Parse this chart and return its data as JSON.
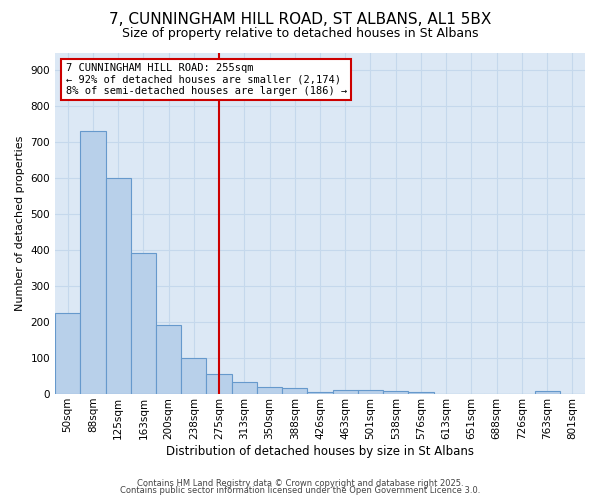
{
  "title_line1": "7, CUNNINGHAM HILL ROAD, ST ALBANS, AL1 5BX",
  "title_line2": "Size of property relative to detached houses in St Albans",
  "xlabel": "Distribution of detached houses by size in St Albans",
  "ylabel": "Number of detached properties",
  "categories": [
    "50sqm",
    "88sqm",
    "125sqm",
    "163sqm",
    "200sqm",
    "238sqm",
    "275sqm",
    "313sqm",
    "350sqm",
    "388sqm",
    "426sqm",
    "463sqm",
    "501sqm",
    "538sqm",
    "576sqm",
    "613sqm",
    "651sqm",
    "688sqm",
    "726sqm",
    "763sqm",
    "801sqm"
  ],
  "values": [
    225,
    733,
    600,
    393,
    193,
    100,
    57,
    33,
    20,
    18,
    7,
    10,
    10,
    8,
    5,
    0,
    0,
    0,
    0,
    8,
    0
  ],
  "bar_color": "#b8d0ea",
  "bar_edge_color": "#6699cc",
  "grid_color": "#c5d8ec",
  "background_color": "#dce8f5",
  "vline_x_index": 6,
  "vline_color": "#cc0000",
  "annotation_text": "7 CUNNINGHAM HILL ROAD: 255sqm\n← 92% of detached houses are smaller (2,174)\n8% of semi-detached houses are larger (186) →",
  "annotation_box_facecolor": "#ffffff",
  "annotation_box_edgecolor": "#cc0000",
  "footer_line1": "Contains HM Land Registry data © Crown copyright and database right 2025.",
  "footer_line2": "Contains public sector information licensed under the Open Government Licence 3.0.",
  "ylim": [
    0,
    950
  ],
  "yticks": [
    0,
    100,
    200,
    300,
    400,
    500,
    600,
    700,
    800,
    900
  ],
  "title1_fontsize": 11,
  "title2_fontsize": 9,
  "ylabel_fontsize": 8,
  "xlabel_fontsize": 8.5,
  "tick_fontsize": 7.5
}
